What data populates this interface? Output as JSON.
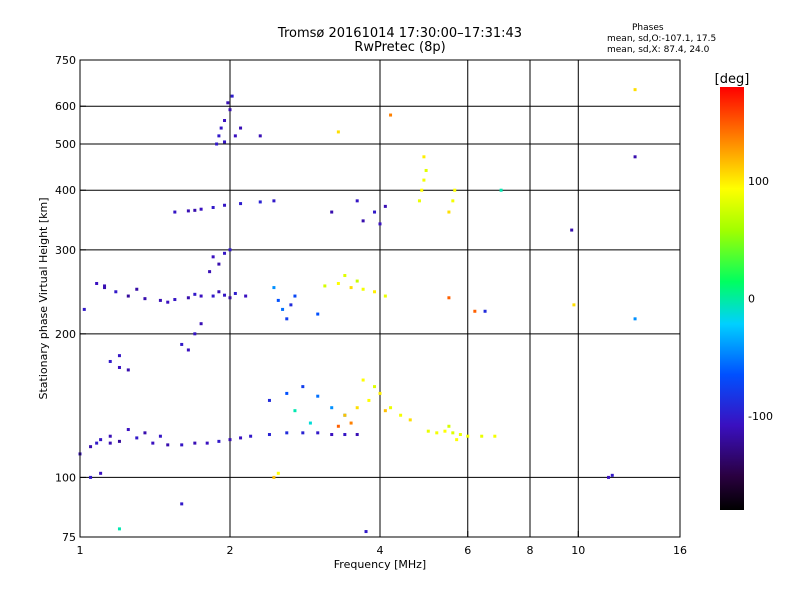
{
  "chart_data": {
    "type": "scatter",
    "title": "Tromsø 20161014 17:30:00–17:31:43",
    "subtitle": "RwPretec (8p)",
    "xlabel": "Frequency [MHz]",
    "ylabel": "Stationary phase Virtual Height [km]",
    "x_scale": "log",
    "y_scale": "log",
    "xlim": [
      1,
      16
    ],
    "ylim": [
      75,
      750
    ],
    "x_ticks": [
      1,
      2,
      4,
      6,
      8,
      10,
      16
    ],
    "y_ticks": [
      75,
      100,
      200,
      300,
      400,
      500,
      600,
      750
    ],
    "x_grid": [
      2,
      4,
      6,
      8,
      10
    ],
    "y_grid": [
      100,
      200,
      300,
      400,
      500,
      600
    ],
    "grid": true,
    "colorbar": {
      "label": "[deg]",
      "range": [
        -180,
        180
      ],
      "ticks": [
        100,
        0,
        -100
      ],
      "palette": "rainbow"
    },
    "stats": {
      "header": "Phases",
      "line_o": "mean, sd,O:-107.1, 17.5",
      "line_x": "mean, sd,X:  87.4, 24.0"
    },
    "series": [
      {
        "points": [
          [
            1.02,
            225,
            -110
          ],
          [
            1.08,
            255,
            -115
          ],
          [
            1.12,
            250,
            -120
          ],
          [
            1.18,
            245,
            -110
          ],
          [
            1.25,
            240,
            -125
          ],
          [
            1.35,
            237,
            -120
          ],
          [
            1.45,
            235,
            -118
          ],
          [
            1.55,
            236,
            -112
          ],
          [
            1.65,
            238,
            -120
          ],
          [
            1.75,
            240,
            -115
          ],
          [
            1.85,
            240,
            -110
          ],
          [
            1.95,
            241,
            -112
          ],
          [
            2.05,
            243,
            -108
          ],
          [
            2.15,
            240,
            -115
          ],
          [
            1.12,
            252,
            -118
          ],
          [
            1.3,
            248,
            -122
          ],
          [
            1.5,
            233,
            -115
          ],
          [
            1.7,
            242,
            -110
          ],
          [
            1.9,
            245,
            -118
          ],
          [
            2.0,
            238,
            -125
          ],
          [
            1.0,
            112,
            -115
          ],
          [
            1.05,
            116,
            -120
          ],
          [
            1.1,
            120,
            -112
          ],
          [
            1.15,
            118,
            -118
          ],
          [
            1.2,
            119,
            -125
          ],
          [
            1.3,
            121,
            -110
          ],
          [
            1.4,
            118,
            -115
          ],
          [
            1.5,
            117,
            -120
          ],
          [
            1.6,
            117,
            -112
          ],
          [
            1.7,
            118,
            -118
          ],
          [
            1.8,
            118,
            -115
          ],
          [
            1.9,
            119,
            -110
          ],
          [
            2.0,
            120,
            -118
          ],
          [
            2.1,
            121,
            -115
          ],
          [
            2.2,
            122,
            -110
          ],
          [
            2.4,
            123,
            -105
          ],
          [
            2.6,
            124,
            -100
          ],
          [
            2.8,
            124,
            -105
          ],
          [
            3.0,
            124,
            -110
          ],
          [
            3.2,
            123,
            -115
          ],
          [
            3.4,
            123,
            -112
          ],
          [
            3.6,
            123,
            -118
          ],
          [
            1.25,
            126,
            -115
          ],
          [
            1.35,
            124,
            -120
          ],
          [
            1.45,
            122,
            -112
          ],
          [
            1.15,
            122,
            -118
          ],
          [
            1.08,
            118,
            -110
          ],
          [
            1.55,
            360,
            -112
          ],
          [
            1.65,
            362,
            -118
          ],
          [
            1.75,
            365,
            -115
          ],
          [
            1.85,
            368,
            -110
          ],
          [
            1.95,
            372,
            -112
          ],
          [
            2.1,
            375,
            -108
          ],
          [
            2.3,
            378,
            -105
          ],
          [
            2.45,
            380,
            -110
          ],
          [
            1.7,
            363,
            -120
          ],
          [
            1.9,
            520,
            -110
          ],
          [
            1.95,
            560,
            -115
          ],
          [
            2.0,
            590,
            -120
          ],
          [
            1.92,
            540,
            -112
          ],
          [
            1.98,
            610,
            -118
          ],
          [
            2.02,
            630,
            -108
          ],
          [
            2.05,
            520,
            -115
          ],
          [
            1.88,
            500,
            -110
          ],
          [
            1.95,
            505,
            -112
          ],
          [
            2.1,
            540,
            -118
          ],
          [
            2.45,
            250,
            -60
          ],
          [
            2.5,
            235,
            -80
          ],
          [
            2.55,
            225,
            -70
          ],
          [
            2.6,
            215,
            -90
          ],
          [
            2.65,
            230,
            -100
          ],
          [
            2.7,
            240,
            -85
          ],
          [
            1.15,
            175,
            -110
          ],
          [
            1.2,
            170,
            -115
          ],
          [
            1.25,
            168,
            -120
          ],
          [
            1.2,
            180,
            -112
          ],
          [
            1.6,
            190,
            -110
          ],
          [
            1.65,
            185,
            -115
          ],
          [
            1.7,
            200,
            -112
          ],
          [
            1.75,
            210,
            -118
          ],
          [
            1.85,
            290,
            -115
          ],
          [
            1.9,
            280,
            -120
          ],
          [
            1.95,
            295,
            -112
          ],
          [
            2.0,
            300,
            -110
          ],
          [
            1.82,
            270,
            -118
          ],
          [
            2.4,
            145,
            -100
          ],
          [
            2.6,
            150,
            -80
          ],
          [
            2.8,
            155,
            -90
          ],
          [
            3.0,
            148,
            -70
          ],
          [
            3.2,
            140,
            -60
          ],
          [
            3.4,
            135,
            -50
          ],
          [
            2.7,
            138,
            -20
          ],
          [
            2.9,
            130,
            -30
          ],
          [
            3.1,
            252,
            80
          ],
          [
            3.3,
            255,
            100
          ],
          [
            3.5,
            250,
            110
          ],
          [
            3.7,
            248,
            95
          ],
          [
            3.9,
            245,
            105
          ],
          [
            4.1,
            240,
            90
          ],
          [
            3.6,
            258,
            75
          ],
          [
            3.4,
            265,
            85
          ],
          [
            3.4,
            135,
            120
          ],
          [
            3.6,
            140,
            110
          ],
          [
            3.8,
            145,
            100
          ],
          [
            4.0,
            150,
            105
          ],
          [
            4.2,
            140,
            90
          ],
          [
            4.4,
            135,
            95
          ],
          [
            4.6,
            132,
            110
          ],
          [
            3.7,
            160,
            100
          ],
          [
            3.9,
            155,
            85
          ],
          [
            4.1,
            138,
            120
          ],
          [
            3.5,
            130,
            140
          ],
          [
            3.3,
            128,
            150
          ],
          [
            5.0,
            125,
            90
          ],
          [
            5.2,
            124,
            95
          ],
          [
            5.4,
            125,
            100
          ],
          [
            5.6,
            124,
            85
          ],
          [
            5.8,
            123,
            90
          ],
          [
            6.0,
            122,
            95
          ],
          [
            6.4,
            122,
            90
          ],
          [
            6.8,
            122,
            95
          ],
          [
            5.5,
            128,
            80
          ],
          [
            5.7,
            120,
            100
          ],
          [
            4.8,
            380,
            90
          ],
          [
            4.85,
            400,
            100
          ],
          [
            4.9,
            420,
            95
          ],
          [
            4.95,
            440,
            85
          ],
          [
            4.9,
            470,
            105
          ],
          [
            5.5,
            360,
            110
          ],
          [
            5.6,
            380,
            95
          ],
          [
            5.65,
            400,
            100
          ],
          [
            3.9,
            360,
            -110
          ],
          [
            4.0,
            340,
            -115
          ],
          [
            4.1,
            370,
            -118
          ],
          [
            3.7,
            345,
            -120
          ],
          [
            3.6,
            380,
            -112
          ],
          [
            11.5,
            100,
            -115
          ],
          [
            11.7,
            101,
            -110
          ],
          [
            13.0,
            470,
            -120
          ],
          [
            13.0,
            215,
            -60
          ],
          [
            13.0,
            650,
            110
          ],
          [
            9.8,
            230,
            110
          ],
          [
            9.7,
            330,
            -120
          ],
          [
            6.5,
            223,
            -100
          ],
          [
            5.5,
            238,
            150
          ],
          [
            6.2,
            223,
            150
          ],
          [
            1.2,
            78,
            -20
          ],
          [
            1.6,
            88,
            -110
          ],
          [
            1.1,
            102,
            -115
          ],
          [
            1.05,
            100,
            -110
          ],
          [
            2.5,
            102,
            100
          ],
          [
            2.45,
            100,
            120
          ],
          [
            3.75,
            77,
            -110
          ],
          [
            4.2,
            575,
            140
          ],
          [
            3.3,
            530,
            110
          ],
          [
            3.2,
            360,
            -120
          ],
          [
            3.0,
            220,
            -80
          ],
          [
            2.3,
            520,
            -118
          ],
          [
            7.0,
            400,
            -20
          ]
        ]
      }
    ]
  }
}
